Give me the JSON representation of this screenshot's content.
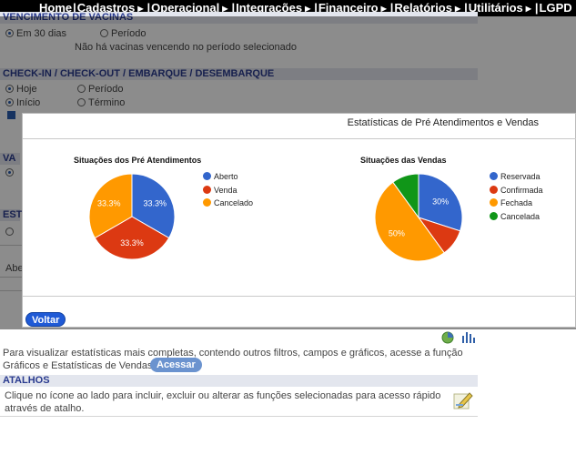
{
  "nav": {
    "items": [
      "Home",
      "Cadastros",
      "Operacional",
      "Integrações",
      "Financeiro",
      "Relatórios",
      "Utilitários",
      "LGPD"
    ]
  },
  "background": {
    "vacinas_header": "VENCIMENTO DE VACINAS",
    "vacinas_option1": "Em 30 dias",
    "vacinas_option2": "Período",
    "vacinas_empty": "Não há vacinas vencendo no período selecionado",
    "checkin_header": "CHECK-IN / CHECK-OUT / EMBARQUE / DESEMBARQUE",
    "checkin_opt_hoje": "Hoje",
    "checkin_opt_periodo": "Período",
    "checkin_opt_inicio": "Início",
    "checkin_opt_termino": "Término",
    "va_fragment": "VA",
    "est_fragment": "EST",
    "abe_fragment": "Abe"
  },
  "modal": {
    "title": "Estatísticas de Pré Atendimentos e Vendas",
    "back_label": "Voltar"
  },
  "chart_data": [
    {
      "type": "pie",
      "title": "Situações dos Pré Atendimentos",
      "categories": [
        "Aberto",
        "Venda",
        "Cancelado"
      ],
      "values": [
        33.3,
        33.3,
        33.3
      ],
      "labels": [
        "33.3%",
        "33.3%",
        "33.3%"
      ],
      "colors": [
        "#3366cc",
        "#dc3912",
        "#ff9900"
      ],
      "legend": "right"
    },
    {
      "type": "pie",
      "title": "Situações das Vendas",
      "categories": [
        "Reservada",
        "Confirmada",
        "Fechada",
        "Cancelada"
      ],
      "values": [
        30,
        10,
        50,
        10
      ],
      "labels": [
        "30%",
        "",
        "50%",
        ""
      ],
      "colors": [
        "#3366cc",
        "#dc3912",
        "#ff9900",
        "#109618"
      ],
      "legend": "right"
    }
  ],
  "bottom": {
    "stats_text_1": "Para visualizar estatísticas mais completas, contendo outros filtros, campos e gráficos, acesse a função",
    "stats_text_2": "Gráficos e Estatísticas de Vendas.",
    "acessar_label": "Acessar",
    "atalhos_header": "ATALHOS",
    "atalhos_text_1": "Clique no ícone ao lado para incluir, excluir ou alterar as funções selecionadas para acesso rápido",
    "atalhos_text_2": "através de atalho."
  },
  "icons": {
    "pie": "pie-chart-icon",
    "bar": "bar-chart-icon",
    "shortcut": "shortcut-edit-icon"
  }
}
